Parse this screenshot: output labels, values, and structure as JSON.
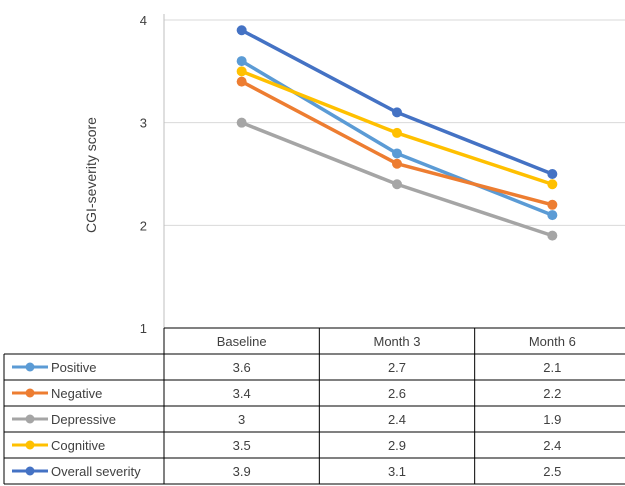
{
  "chart_data": {
    "type": "line",
    "title": "",
    "xlabel": "",
    "ylabel": "CGI-severity score",
    "ylim": [
      1,
      4
    ],
    "yticks": [
      "1",
      "2",
      "3",
      "4"
    ],
    "grid": true,
    "legend": "data-table",
    "categories": [
      "Baseline",
      "Month 3",
      "Month 6"
    ],
    "series": [
      {
        "name": "Positive",
        "color": "#5B9BD5",
        "values": [
          3.6,
          2.7,
          2.1
        ],
        "labels": [
          "3.6",
          "2.7",
          "2.1"
        ]
      },
      {
        "name": "Negative",
        "color": "#ED7D31",
        "values": [
          3.4,
          2.6,
          2.2
        ],
        "labels": [
          "3.4",
          "2.6",
          "2.2"
        ]
      },
      {
        "name": "Depressive",
        "color": "#A5A5A5",
        "values": [
          3.0,
          2.4,
          1.9
        ],
        "labels": [
          "3",
          "2.4",
          "1.9"
        ]
      },
      {
        "name": "Cognitive",
        "color": "#FFC000",
        "values": [
          3.5,
          2.9,
          2.4
        ],
        "labels": [
          "3.5",
          "2.9",
          "2.4"
        ]
      },
      {
        "name": "Overall severity",
        "color": "#4472C4",
        "values": [
          3.9,
          3.1,
          2.5
        ],
        "labels": [
          "3.9",
          "3.1",
          "2.5"
        ]
      }
    ]
  }
}
